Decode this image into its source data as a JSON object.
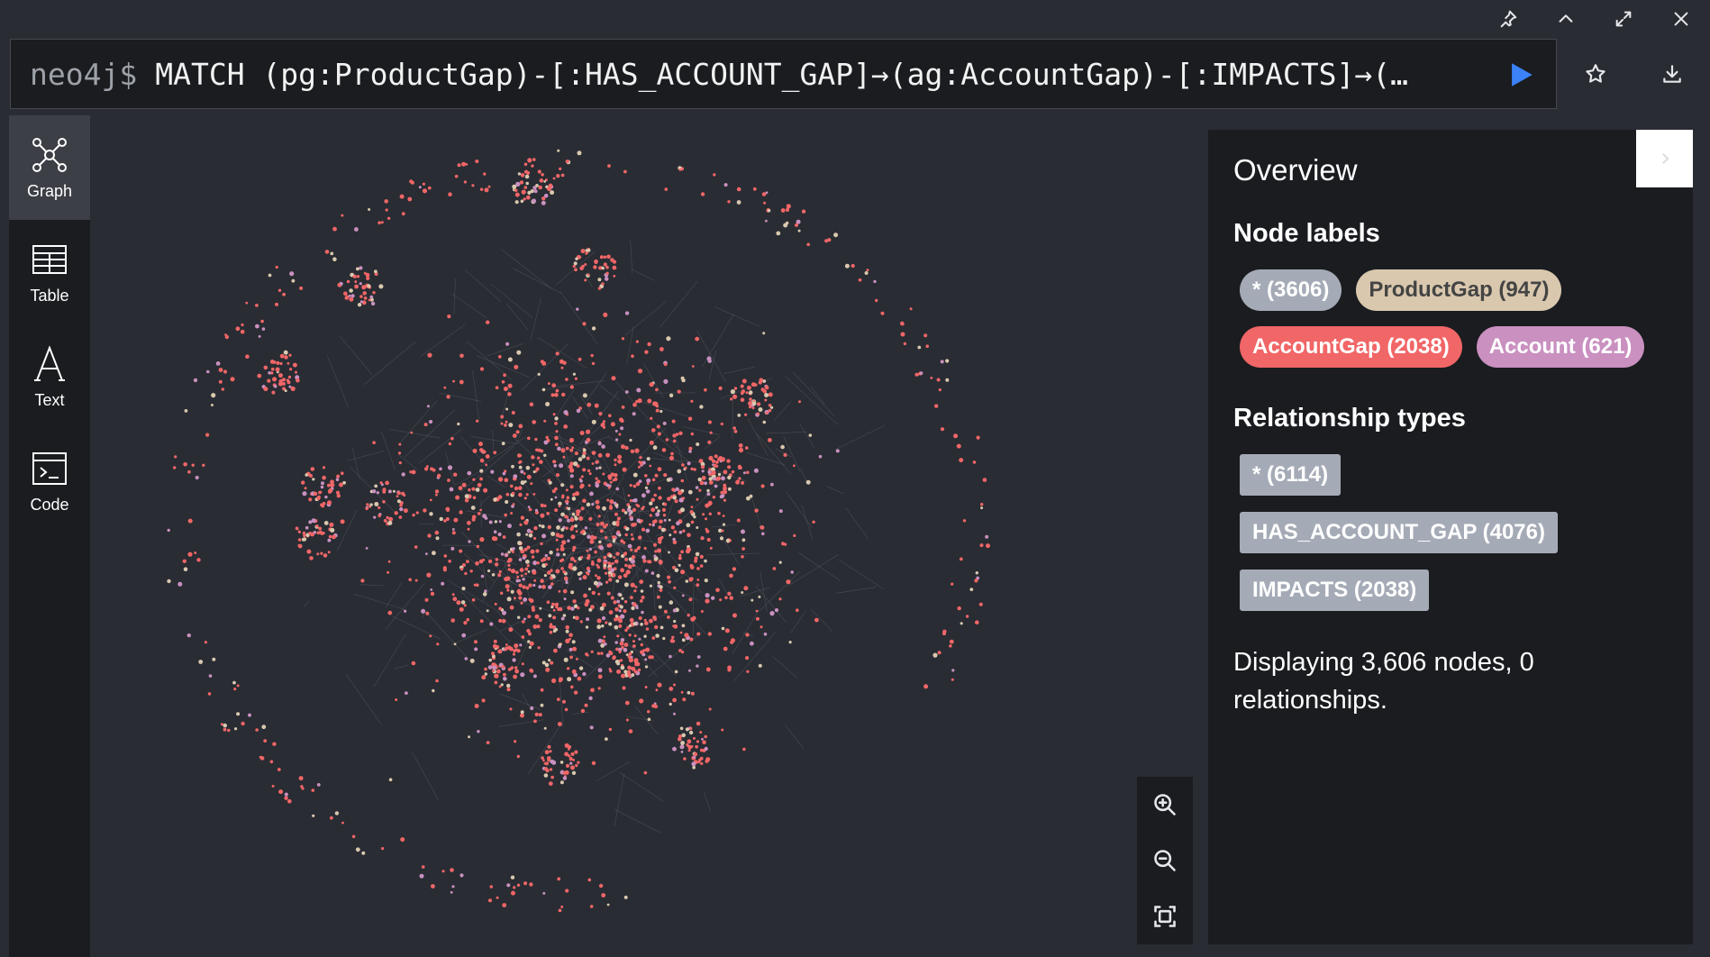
{
  "editor": {
    "prompt": "neo4j$",
    "query": "MATCH (pg:ProductGap)-[:HAS_ACCOUNT_GAP]→(ag:AccountGap)-[:IMPACTS]→(…"
  },
  "sidebar": {
    "items": [
      {
        "label": "Graph",
        "icon": "graph-icon",
        "active": true
      },
      {
        "label": "Table",
        "icon": "table-icon",
        "active": false
      },
      {
        "label": "Text",
        "icon": "text-icon",
        "active": false
      },
      {
        "label": "Code",
        "icon": "code-icon",
        "active": false
      }
    ]
  },
  "overview": {
    "title": "Overview",
    "node_labels_heading": "Node labels",
    "node_labels": [
      {
        "label": "* (3606)",
        "color": "#a5abb6",
        "text_color": "#ffffff"
      },
      {
        "label": "ProductGap (947)",
        "color": "#d9c8ae",
        "text_color": "#444444"
      },
      {
        "label": "AccountGap (2038)",
        "color": "#f16667",
        "text_color": "#ffffff"
      },
      {
        "label": "Account (621)",
        "color": "#c990c0",
        "text_color": "#ffffff"
      }
    ],
    "relationship_types_heading": "Relationship types",
    "relationship_types": [
      {
        "label": "* (6114)"
      },
      {
        "label": "HAS_ACCOUNT_GAP (4076)"
      },
      {
        "label": "IMPACTS (2038)"
      }
    ],
    "status": "Displaying 3,606 nodes, 0 relationships."
  },
  "colors": {
    "background": "#292c33",
    "panel": "#1a1c20",
    "run": "#3b82f6",
    "relationship_pill": "#a5abb6"
  }
}
